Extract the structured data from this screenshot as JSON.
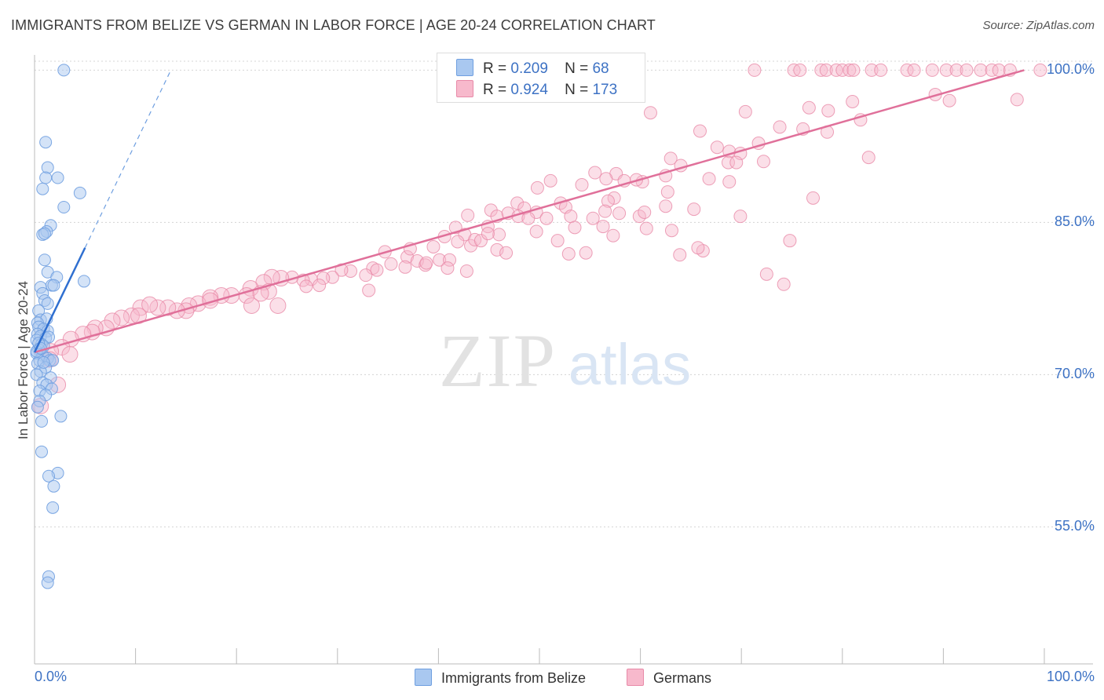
{
  "header": {
    "title": "IMMIGRANTS FROM BELIZE VS GERMAN IN LABOR FORCE | AGE 20-24 CORRELATION CHART",
    "source": "Source: ZipAtlas.com"
  },
  "watermark": {
    "zip": "ZIP",
    "atlas": "atlas"
  },
  "legend": {
    "series": [
      {
        "name": "Immigrants from Belize",
        "r_label": "R =",
        "r_value": "0.209",
        "n_label": "N =",
        "n_value": "68",
        "color": "#a9c8f0",
        "stroke": "#6f9fe0"
      },
      {
        "name": "Germans",
        "r_label": "R =",
        "r_value": "0.924",
        "n_label": "N =",
        "n_value": "173",
        "color": "#f7b9cc",
        "stroke": "#e88aa8"
      }
    ]
  },
  "chart_data": {
    "type": "scatter",
    "title": "IMMIGRANTS FROM BELIZE VS GERMAN IN LABOR FORCE | AGE 20-24 CORRELATION CHART",
    "xlabel_min": "0.0%",
    "xlabel_max": "100.0%",
    "ylabel": "In Labor Force | Age 20-24",
    "xlim": [
      0,
      100
    ],
    "ylim": [
      41.5,
      101.5
    ],
    "ytick_values": [
      55,
      70,
      85,
      100
    ],
    "ytick_labels": [
      "55.0%",
      "70.0%",
      "85.0%",
      "100.0%"
    ],
    "grid": true,
    "series": [
      {
        "name": "Immigrants from Belize",
        "color": "#6f9fe0",
        "fill": "#a9c8f0",
        "trend": {
          "x0": 0.0,
          "y0": 72.2,
          "x1": 5.0,
          "y1": 82.5,
          "dash_x1": 13.5,
          "dash_y1": 100.0
        },
        "points": [
          [
            2.9,
            100.0
          ],
          [
            1.1,
            92.9
          ],
          [
            1.3,
            90.4
          ],
          [
            1.1,
            89.4
          ],
          [
            2.3,
            89.4
          ],
          [
            0.8,
            88.3
          ],
          [
            4.5,
            87.9
          ],
          [
            2.9,
            86.5
          ],
          [
            1.6,
            84.7
          ],
          [
            1.2,
            84.1
          ],
          [
            0.8,
            83.8
          ],
          [
            1.0,
            83.9
          ],
          [
            1.0,
            81.3
          ],
          [
            1.3,
            80.1
          ],
          [
            2.2,
            79.6
          ],
          [
            4.9,
            79.2
          ],
          [
            1.7,
            78.8
          ],
          [
            1.9,
            78.8
          ],
          [
            0.6,
            78.6
          ],
          [
            0.8,
            78.0
          ],
          [
            1.0,
            77.3
          ],
          [
            1.3,
            77.0
          ],
          [
            0.4,
            76.3
          ],
          [
            0.6,
            75.4
          ],
          [
            1.2,
            75.5
          ],
          [
            0.3,
            75.1
          ],
          [
            0.4,
            74.7
          ],
          [
            0.9,
            74.5
          ],
          [
            1.3,
            74.3
          ],
          [
            0.3,
            74.0
          ],
          [
            0.6,
            73.8
          ],
          [
            1.1,
            73.6
          ],
          [
            1.4,
            73.7
          ],
          [
            0.2,
            73.4
          ],
          [
            0.7,
            73.0
          ],
          [
            0.9,
            72.8
          ],
          [
            0.4,
            72.5
          ],
          [
            0.2,
            72.1
          ],
          [
            0.8,
            71.9
          ],
          [
            1.3,
            71.6
          ],
          [
            0.5,
            71.4
          ],
          [
            1.5,
            71.4
          ],
          [
            1.8,
            71.4
          ],
          [
            0.3,
            71.1
          ],
          [
            1.1,
            70.7
          ],
          [
            0.6,
            70.3
          ],
          [
            0.2,
            70.0
          ],
          [
            1.6,
            69.7
          ],
          [
            0.8,
            69.2
          ],
          [
            1.2,
            69.0
          ],
          [
            1.7,
            68.6
          ],
          [
            0.5,
            68.4
          ],
          [
            1.1,
            68.0
          ],
          [
            0.5,
            67.4
          ],
          [
            0.3,
            66.8
          ],
          [
            2.6,
            65.9
          ],
          [
            0.7,
            65.4
          ],
          [
            0.7,
            62.4
          ],
          [
            2.3,
            60.3
          ],
          [
            1.4,
            60.0
          ],
          [
            1.9,
            59.0
          ],
          [
            1.8,
            56.9
          ],
          [
            1.4,
            50.1
          ],
          [
            1.3,
            49.5
          ],
          [
            0.2,
            72.3
          ],
          [
            0.4,
            73.1
          ],
          [
            0.6,
            72.6
          ],
          [
            0.9,
            71.2
          ]
        ]
      },
      {
        "name": "Germans",
        "color": "#e88aa8",
        "fill": "#f7b9cc",
        "trend": {
          "x0": 0.0,
          "y0": 72.2,
          "x1": 98.0,
          "y1": 100.0
        },
        "points": [
          [
            71.3,
            100.0
          ],
          [
            75.2,
            100.0
          ],
          [
            75.8,
            100.0
          ],
          [
            77.9,
            100.0
          ],
          [
            78.4,
            100.0
          ],
          [
            79.4,
            100.0
          ],
          [
            80.0,
            100.0
          ],
          [
            80.7,
            100.0
          ],
          [
            81.1,
            100.0
          ],
          [
            82.9,
            100.0
          ],
          [
            83.8,
            100.0
          ],
          [
            86.4,
            100.0
          ],
          [
            87.1,
            100.0
          ],
          [
            88.9,
            100.0
          ],
          [
            90.3,
            100.0
          ],
          [
            91.3,
            100.0
          ],
          [
            92.3,
            100.0
          ],
          [
            93.7,
            100.0
          ],
          [
            94.8,
            100.0
          ],
          [
            95.5,
            100.0
          ],
          [
            96.6,
            100.0
          ],
          [
            99.6,
            100.0
          ],
          [
            89.2,
            97.6
          ],
          [
            90.6,
            97.0
          ],
          [
            97.3,
            97.1
          ],
          [
            81.0,
            96.9
          ],
          [
            76.7,
            96.3
          ],
          [
            78.6,
            96.0
          ],
          [
            70.4,
            95.9
          ],
          [
            61.0,
            95.8
          ],
          [
            81.8,
            95.1
          ],
          [
            73.8,
            94.4
          ],
          [
            76.1,
            94.2
          ],
          [
            78.5,
            93.9
          ],
          [
            65.9,
            94.0
          ],
          [
            71.7,
            92.8
          ],
          [
            67.6,
            92.4
          ],
          [
            68.8,
            92.0
          ],
          [
            69.9,
            91.8
          ],
          [
            63.0,
            91.3
          ],
          [
            68.7,
            90.9
          ],
          [
            69.5,
            90.9
          ],
          [
            72.2,
            91.0
          ],
          [
            82.6,
            91.4
          ],
          [
            64.0,
            90.6
          ],
          [
            62.5,
            89.6
          ],
          [
            66.8,
            89.3
          ],
          [
            60.2,
            89.0
          ],
          [
            57.6,
            89.8
          ],
          [
            59.6,
            89.2
          ],
          [
            55.5,
            89.9
          ],
          [
            56.6,
            89.3
          ],
          [
            51.1,
            89.1
          ],
          [
            54.2,
            88.7
          ],
          [
            49.8,
            88.4
          ],
          [
            62.7,
            88.0
          ],
          [
            57.4,
            87.4
          ],
          [
            56.8,
            87.1
          ],
          [
            52.1,
            86.9
          ],
          [
            52.6,
            86.5
          ],
          [
            62.5,
            86.6
          ],
          [
            65.3,
            86.3
          ],
          [
            59.9,
            85.6
          ],
          [
            55.3,
            85.4
          ],
          [
            56.3,
            84.6
          ],
          [
            57.3,
            83.7
          ],
          [
            60.6,
            84.4
          ],
          [
            63.1,
            84.2
          ],
          [
            60.4,
            86.0
          ],
          [
            56.5,
            86.1
          ],
          [
            57.9,
            85.9
          ],
          [
            47.8,
            86.9
          ],
          [
            48.5,
            86.4
          ],
          [
            49.7,
            86.0
          ],
          [
            45.2,
            86.2
          ],
          [
            42.9,
            85.7
          ],
          [
            45.8,
            85.6
          ],
          [
            46.9,
            85.9
          ],
          [
            47.9,
            85.6
          ],
          [
            48.9,
            85.4
          ],
          [
            50.7,
            85.4
          ],
          [
            53.1,
            85.6
          ],
          [
            53.5,
            84.5
          ],
          [
            49.7,
            84.1
          ],
          [
            44.9,
            84.6
          ],
          [
            41.7,
            84.5
          ],
          [
            42.6,
            83.8
          ],
          [
            40.6,
            83.6
          ],
          [
            41.9,
            83.1
          ],
          [
            43.2,
            82.7
          ],
          [
            46.0,
            83.8
          ],
          [
            43.6,
            83.3
          ],
          [
            44.2,
            83.2
          ],
          [
            45.8,
            82.3
          ],
          [
            51.8,
            83.2
          ],
          [
            46.7,
            82.0
          ],
          [
            54.6,
            82.0
          ],
          [
            66.2,
            82.2
          ],
          [
            63.9,
            81.8
          ],
          [
            52.9,
            81.9
          ],
          [
            34.7,
            82.1
          ],
          [
            39.5,
            82.6
          ],
          [
            36.9,
            81.6
          ],
          [
            37.9,
            81.2
          ],
          [
            40.1,
            81.3
          ],
          [
            41.1,
            81.3
          ],
          [
            38.7,
            80.8
          ],
          [
            36.7,
            80.6
          ],
          [
            35.3,
            80.9
          ],
          [
            33.5,
            80.5
          ],
          [
            33.9,
            80.3
          ],
          [
            31.3,
            80.2
          ],
          [
            32.8,
            79.8
          ],
          [
            30.4,
            80.3
          ],
          [
            29.5,
            79.6
          ],
          [
            28.6,
            79.5
          ],
          [
            27.4,
            79.4
          ],
          [
            26.6,
            79.3
          ],
          [
            26.9,
            78.7
          ],
          [
            28.2,
            78.8
          ],
          [
            25.5,
            79.6
          ],
          [
            24.4,
            79.5
          ],
          [
            23.5,
            79.6
          ],
          [
            22.7,
            79.1
          ],
          [
            21.4,
            78.5
          ],
          [
            23.2,
            78.2
          ],
          [
            21.0,
            77.8
          ],
          [
            19.5,
            77.8
          ],
          [
            18.5,
            77.8
          ],
          [
            17.4,
            77.6
          ],
          [
            16.2,
            77.0
          ],
          [
            15.3,
            76.8
          ],
          [
            15.0,
            76.3
          ],
          [
            14.1,
            76.3
          ],
          [
            13.2,
            76.6
          ],
          [
            12.2,
            76.6
          ],
          [
            10.5,
            76.6
          ],
          [
            11.4,
            76.9
          ],
          [
            9.6,
            75.8
          ],
          [
            10.3,
            75.8
          ],
          [
            8.6,
            75.6
          ],
          [
            7.7,
            75.3
          ],
          [
            7.1,
            74.6
          ],
          [
            6.0,
            74.6
          ],
          [
            5.7,
            74.2
          ],
          [
            4.8,
            74.0
          ],
          [
            3.6,
            73.5
          ],
          [
            2.7,
            72.7
          ],
          [
            1.6,
            72.3
          ],
          [
            1.5,
            71.5
          ],
          [
            3.5,
            72.0
          ],
          [
            2.3,
            69.0
          ],
          [
            0.6,
            66.9
          ],
          [
            21.5,
            76.8
          ],
          [
            24.1,
            76.8
          ],
          [
            17.4,
            77.3
          ],
          [
            33.1,
            78.3
          ],
          [
            38.8,
            81.0
          ],
          [
            44.9,
            83.9
          ],
          [
            37.2,
            82.4
          ],
          [
            22.4,
            78.0
          ],
          [
            68.8,
            89.0
          ],
          [
            42.8,
            80.2
          ],
          [
            40.9,
            80.5
          ],
          [
            77.1,
            87.4
          ],
          [
            69.9,
            85.6
          ],
          [
            74.8,
            83.2
          ],
          [
            58.4,
            89.1
          ],
          [
            65.7,
            82.5
          ],
          [
            72.5,
            79.9
          ],
          [
            74.2,
            78.9
          ]
        ]
      }
    ]
  }
}
